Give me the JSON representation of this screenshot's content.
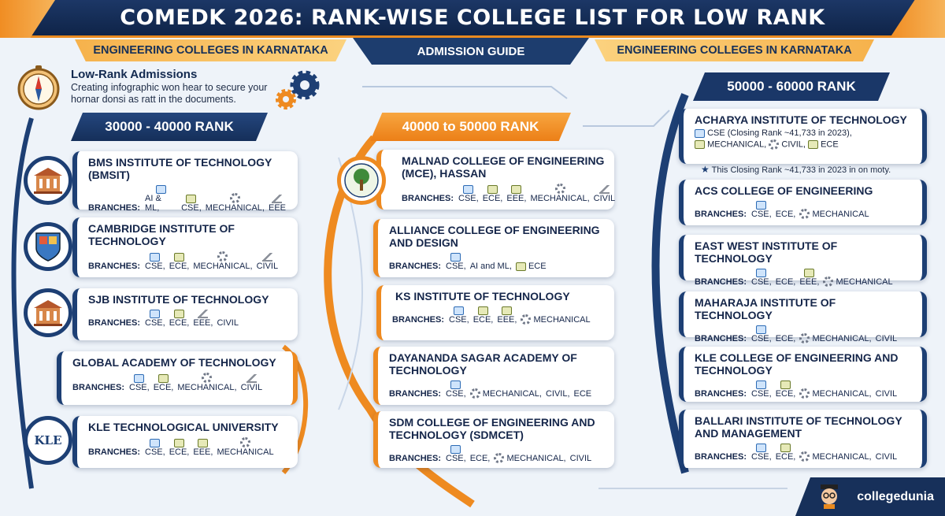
{
  "header": {
    "title": "COMEDK 2026: RANK-WISE COLLEGE LIST FOR LOW RANK",
    "left_ribbon": "ENGINEERING COLLEGES IN KARNATAKA",
    "center_ribbon": "ADMISSION GUIDE",
    "right_ribbon": "ENGINEERING COLLEGES IN KARNATAKA"
  },
  "intro": {
    "title": "Low-Rank Admissions",
    "text": "Creating infographic won hear to secure your hornar donsi as ratt in the documents."
  },
  "colors": {
    "navy": "#1d3f74",
    "orange": "#ee8a20",
    "background": "#eef3f9"
  },
  "ranks": {
    "r1": "30000 - 40000 RANK",
    "r2": "40000 to 50000 RANK",
    "r3": "50000 - 60000 RANK"
  },
  "branches_label": "BRANCHES:",
  "col1": [
    {
      "name": "BMS INSTITUTE OF TECHNOLOGY (BMSIT)",
      "branches": [
        "AI & ML,",
        "CSE,",
        "MECHANICAL,",
        "EEE"
      ]
    },
    {
      "name": "CAMBRIDGE INSTITUTE OF TECHNOLOGY",
      "branches": [
        "CSE,",
        "ECE,",
        "MECHANICAL,",
        "CIVIL"
      ]
    },
    {
      "name": "SJB INSTITUTE OF TECHNOLOGY",
      "branches": [
        "CSE,",
        "ECE,",
        "EEE,",
        "CIVIL"
      ]
    },
    {
      "name": "GLOBAL ACADEMY OF TECHNOLOGY",
      "branches": [
        "CSE,",
        "ECE,",
        "MECHANICAL,",
        "CIVIL"
      ]
    },
    {
      "name": "KLE TECHNOLOGICAL UNIVERSITY",
      "branches": [
        "CSE,",
        "ECE,",
        "EEE,",
        "MECHANICAL"
      ]
    }
  ],
  "col2": [
    {
      "name": "MALNAD COLLEGE OF ENGINEERING (MCE), HASSAN",
      "branches": [
        "CSE,",
        "ECE,",
        "EEE,",
        "MECHANICAL,",
        "CIVIL"
      ]
    },
    {
      "name": "ALLIANCE COLLEGE OF ENGINEERING AND DESIGN",
      "branches": [
        "CSE,",
        "AI and ML,",
        "ECE"
      ]
    },
    {
      "name": "KS INSTITUTE OF TECHNOLOGY",
      "branches": [
        "CSE,",
        "ECE,",
        "EEE,",
        "MECHANICAL"
      ]
    },
    {
      "name": "DAYANANDA SAGAR ACADEMY OF TECHNOLOGY",
      "branches": [
        "CSE,",
        "MECHANICAL,",
        "CIVIL,",
        "ECE"
      ]
    },
    {
      "name": "SDM COLLEGE OF ENGINEERING AND TECHNOLOGY (SDMCET)",
      "branches": [
        "CSE,",
        "ECE,",
        "MECHANICAL,",
        "CIVIL"
      ]
    }
  ],
  "col3": [
    {
      "name": "ACHARYA INSTITUTE OF TECHNOLOGY",
      "line1": "CSE (Closing Rank ~41,733 in 2023),",
      "line2": [
        "MECHANICAL,",
        "CIVIL,",
        "ECE"
      ]
    },
    {
      "name": "ACS COLLEGE OF ENGINEERING",
      "branches": [
        "CSE,",
        "ECE,",
        "MECHANICAL"
      ]
    },
    {
      "name": "EAST WEST INSTITUTE OF TECHNOLOGY",
      "branches": [
        "CSE,",
        "ECE,",
        "EEE,",
        "MECHANICAL"
      ]
    },
    {
      "name": "MAHARAJA INSTITUTE OF TECHNOLOGY",
      "branches": [
        "CSE,",
        "ECE,",
        "MECHANICAL,",
        "CIVIL"
      ]
    },
    {
      "name": "KLE COLLEGE OF ENGINEERING AND TECHNOLOGY",
      "branches": [
        "CSE,",
        "ECE,",
        "MECHANICAL,",
        "CIVIL"
      ]
    },
    {
      "name": "BALLARI INSTITUTE OF TECHNOLOGY AND MANAGEMENT",
      "branches": [
        "CSE,",
        "ECE,",
        "MECHANICAL,",
        "CIVIL"
      ]
    }
  ],
  "note": "This Closing Rank ~41,733 in 2023 in on moty.",
  "logos": {
    "kle": "KLE"
  },
  "brand": "collegedunia"
}
